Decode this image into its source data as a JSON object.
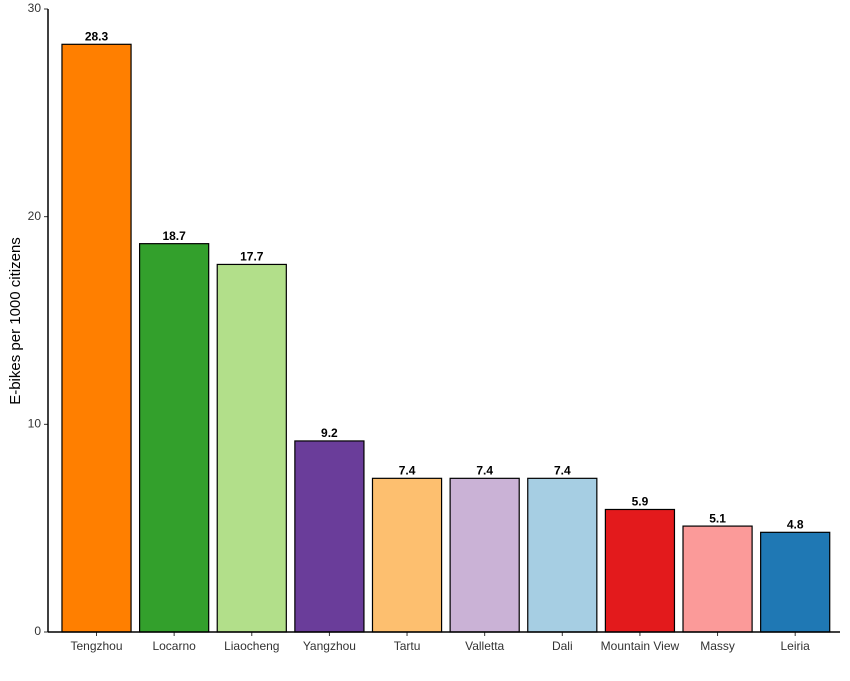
{
  "chart_data": {
    "type": "bar",
    "ylabel": "E-bikes per 1000 citizens",
    "categories": [
      "Tengzhou",
      "Locarno",
      "Liaocheng",
      "Yangzhou",
      "Tartu",
      "Valletta",
      "Dali",
      "Mountain View",
      "Massy",
      "Leiria"
    ],
    "values": [
      28.3,
      18.7,
      17.7,
      9.2,
      7.4,
      7.4,
      7.4,
      5.9,
      5.1,
      4.8
    ],
    "colors": [
      "#ff7f00",
      "#33a02c",
      "#b2df8a",
      "#6a3d9a",
      "#fdbf6f",
      "#cab2d6",
      "#a6cee3",
      "#e31a1c",
      "#fb9a99",
      "#1f78b4"
    ],
    "ylim": [
      0,
      30
    ],
    "yticks": [
      0,
      10,
      20,
      30
    ],
    "grid": false
  }
}
